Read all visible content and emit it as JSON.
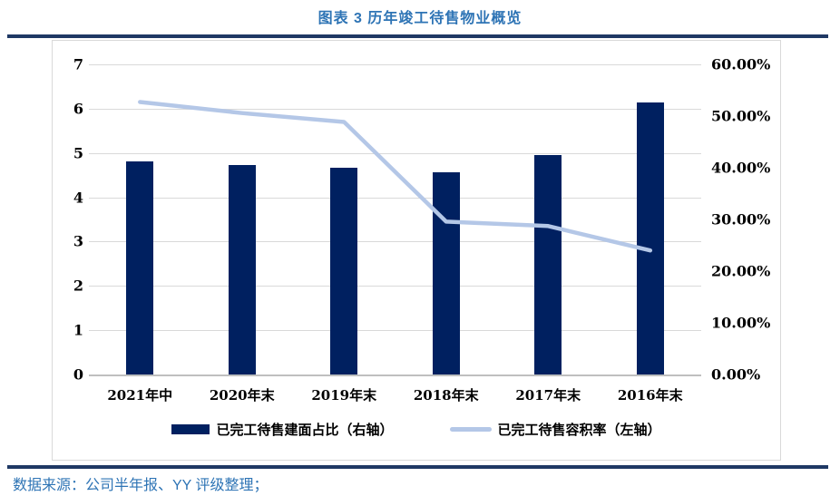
{
  "title": "图表 3 历年竣工待售物业概览",
  "source_note": "数据来源：公司半年报、YY 评级整理；",
  "colors": {
    "bar": "#002060",
    "line": "#B4C7E7",
    "grid": "#D9D9D9",
    "axis_baseline": "#BFBFBF",
    "rule_navy": "#1F3864",
    "title_blue": "#2E74B5",
    "axis_text": "#000000",
    "frame_border": "#D9D9D9"
  },
  "chart_data": {
    "type": "combo",
    "title": "图表 3 历年竣工待售物业概览",
    "categories": [
      "2021年中",
      "2020年末",
      "2019年末",
      "2018年末",
      "2017年末",
      "2016年末"
    ],
    "series": [
      {
        "name": "已完工待售建面占比（右轴）",
        "type": "bar",
        "axis": "right",
        "unit": "%",
        "values": [
          41.2,
          40.5,
          40.0,
          39.2,
          42.5,
          52.7
        ]
      },
      {
        "name": "已完工待售容积率（左轴）",
        "type": "line",
        "axis": "left",
        "values": [
          6.15,
          5.9,
          5.7,
          3.45,
          3.35,
          2.8
        ]
      }
    ],
    "left_axis": {
      "min": 0,
      "max": 7,
      "step": 1,
      "tick_labels": [
        "7",
        "6",
        "5",
        "4",
        "3",
        "2",
        "1",
        "0"
      ]
    },
    "right_axis": {
      "min": 0,
      "max": 60,
      "step": 10,
      "tick_labels": [
        "60.00%",
        "50.00%",
        "40.00%",
        "30.00%",
        "20.00%",
        "10.00%",
        "0.00%"
      ]
    },
    "grid": true,
    "legend_position": "bottom"
  }
}
